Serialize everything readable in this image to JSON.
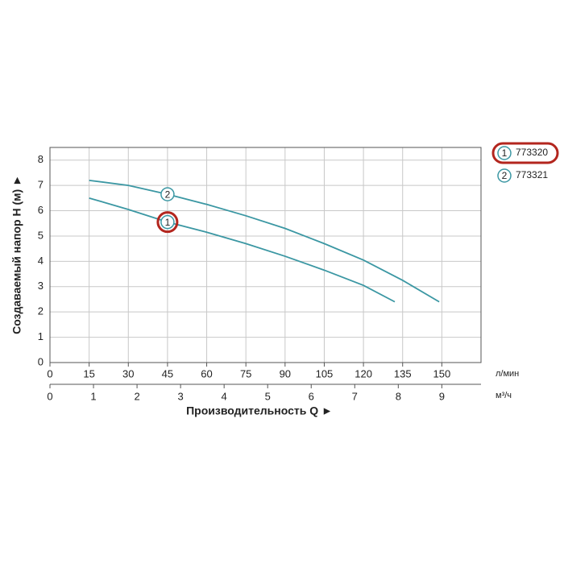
{
  "chart_data": {
    "type": "line",
    "ylabel": "Создаваемый напор H (м) ►",
    "xlabel": "Производительность Q ►",
    "xunit": "л/мин",
    "x2unit": "м³/ч",
    "xlim": [
      0,
      165
    ],
    "xticks": [
      0,
      15,
      30,
      45,
      60,
      75,
      90,
      105,
      120,
      135,
      150
    ],
    "x2lim": [
      0,
      9.9
    ],
    "x2ticks": [
      0,
      1,
      2,
      3,
      4,
      5,
      6,
      7,
      8,
      9
    ],
    "ylim": [
      0,
      8.5
    ],
    "yticks": [
      0,
      1,
      2,
      3,
      4,
      5,
      6,
      7,
      8
    ],
    "grid": true,
    "series": [
      {
        "name": "773320",
        "label": "1",
        "color": "#3b97a3",
        "highlight": "#b3261e",
        "x": [
          15,
          30,
          45,
          60,
          75,
          90,
          105,
          120,
          132
        ],
        "values": [
          6.5,
          6.05,
          5.55,
          5.15,
          4.7,
          4.2,
          3.65,
          3.05,
          2.4
        ]
      },
      {
        "name": "773321",
        "label": "2",
        "color": "#3b97a3",
        "x": [
          15,
          30,
          45,
          60,
          75,
          90,
          105,
          120,
          135,
          149
        ],
        "values": [
          7.2,
          7.0,
          6.65,
          6.25,
          5.8,
          5.3,
          4.7,
          4.05,
          3.25,
          2.4
        ]
      }
    ]
  }
}
